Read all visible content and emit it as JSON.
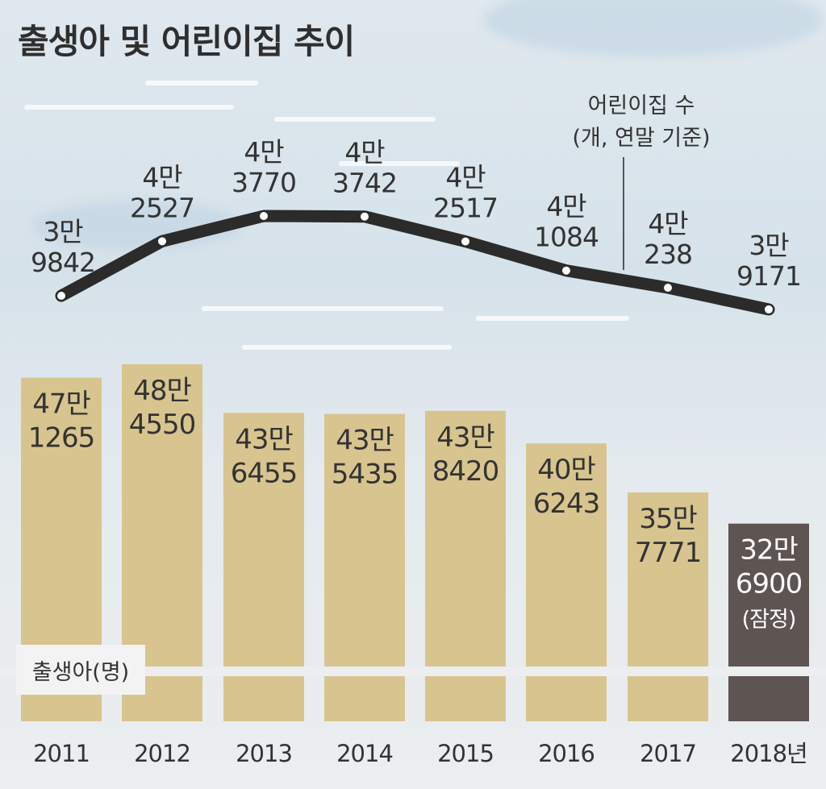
{
  "title": "출생아 및 어린이집 추이",
  "line_legend": {
    "line1": "어린이집 수",
    "line2": "(개, 연말 기준)"
  },
  "bar_legend": "출생아(명)",
  "colors": {
    "bar": "#d8c48f",
    "bar_provisional": "#5e5452",
    "line": "#2b2b2b",
    "text": "#333333",
    "text_on_dark": "#ffffff"
  },
  "chart_data": [
    {
      "type": "bar",
      "title": "출생아 및 어린이집 추이",
      "legend": "출생아(명)",
      "categories": [
        "2011",
        "2012",
        "2013",
        "2014",
        "2015",
        "2016",
        "2017",
        "2018년"
      ],
      "values": [
        471265,
        484550,
        436455,
        435435,
        438420,
        406243,
        357771,
        326900
      ],
      "labels": [
        [
          "47만",
          "1265"
        ],
        [
          "48만",
          "4550"
        ],
        [
          "43만",
          "6455"
        ],
        [
          "43만",
          "5435"
        ],
        [
          "43만",
          "8420"
        ],
        [
          "40만",
          "6243"
        ],
        [
          "35만",
          "7771"
        ],
        [
          "32만",
          "6900",
          "(잠정)"
        ]
      ],
      "provisional_index": 7
    },
    {
      "type": "line",
      "legend": "어린이집 수 (개, 연말 기준)",
      "categories": [
        "2011",
        "2012",
        "2013",
        "2014",
        "2015",
        "2016",
        "2017",
        "2018년"
      ],
      "values": [
        39842,
        42527,
        43770,
        43742,
        42517,
        41084,
        40238,
        39171
      ],
      "labels": [
        [
          "3만",
          "9842"
        ],
        [
          "4만",
          "2527"
        ],
        [
          "4만",
          "3770"
        ],
        [
          "4만",
          "3742"
        ],
        [
          "4만",
          "2517"
        ],
        [
          "4만",
          "1084"
        ],
        [
          "4만",
          "238"
        ],
        [
          "3만",
          "9171"
        ]
      ]
    }
  ]
}
